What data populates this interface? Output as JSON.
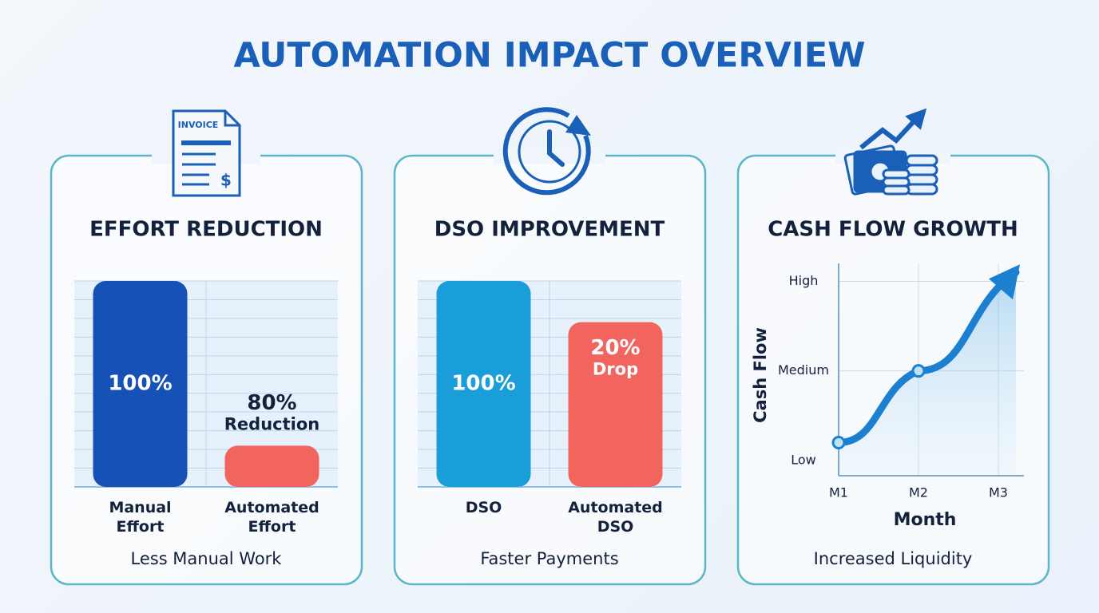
{
  "title": "AUTOMATION IMPACT OVERVIEW",
  "icons": {
    "invoice_label": "INVOICE",
    "invoice_symbol": "$"
  },
  "chart_data": [
    {
      "type": "bar",
      "title": "EFFORT REDUCTION",
      "categories": [
        "Manual Effort",
        "Automated Effort"
      ],
      "values": [
        100,
        20
      ],
      "colors": [
        "#1652b5",
        "#f2655e"
      ],
      "annotations": [
        {
          "lines": [
            "100%"
          ]
        },
        {
          "lines": [
            "80%",
            "Reduction"
          ]
        }
      ],
      "ylim": [
        0,
        100
      ],
      "grid": true,
      "caption": "Less Manual Work"
    },
    {
      "type": "bar",
      "title": "DSO IMPROVEMENT",
      "categories": [
        "DSO",
        "Automated DSO"
      ],
      "values": [
        100,
        80
      ],
      "colors": [
        "#1a9ed9",
        "#f2655e"
      ],
      "annotations": [
        {
          "lines": [
            "100%"
          ]
        },
        {
          "lines": [
            "20%",
            "Drop"
          ]
        }
      ],
      "ylim": [
        0,
        100
      ],
      "grid": true,
      "caption": "Faster Payments"
    },
    {
      "type": "line",
      "title": "CASH FLOW GROWTH",
      "categories": [
        "M1",
        "M2",
        "M3"
      ],
      "values": [
        0.2,
        1.0,
        2.1
      ],
      "color": "#1c7fd0",
      "ylim": [
        -0.17,
        2.2
      ],
      "yticks": [
        {
          "value": 0,
          "label": "Low"
        },
        {
          "value": 1,
          "label": "Medium"
        },
        {
          "value": 2,
          "label": "High"
        }
      ],
      "xlabel": "Month",
      "ylabel": "Cash Flow",
      "grid": true,
      "caption": "Increased Liquidity"
    }
  ]
}
